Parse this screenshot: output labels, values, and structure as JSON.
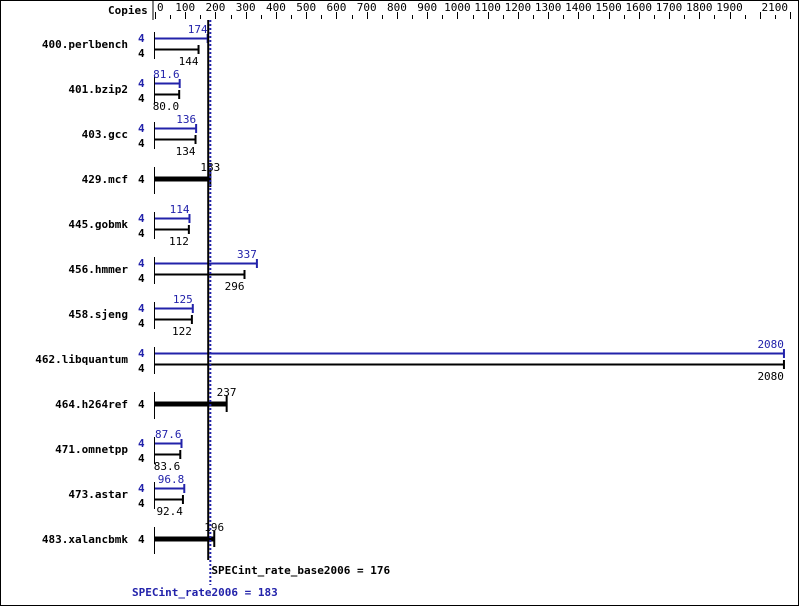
{
  "chart_data": {
    "type": "bar",
    "orientation": "horizontal",
    "axis_label": "Copies",
    "xlim": [
      0,
      2100
    ],
    "major_tick_step": 100,
    "minor_tick_step": 50,
    "tick_labels": [
      "0",
      "100",
      "200",
      "300",
      "400",
      "500",
      "600",
      "700",
      "800",
      "900",
      "1000",
      "1100",
      "1200",
      "1300",
      "1400",
      "1500",
      "1600",
      "1700",
      "1800",
      "1900",
      "2100"
    ],
    "colors": {
      "peak": "#2222aa",
      "base": "#000000"
    },
    "benchmarks": [
      {
        "name": "400.perlbench",
        "copies_peak": "4",
        "peak": 174,
        "peak_label": "174",
        "copies_base": "4",
        "base": 144,
        "base_label": "144"
      },
      {
        "name": "401.bzip2",
        "copies_peak": "4",
        "peak": 81.6,
        "peak_label": "81.6",
        "copies_base": "4",
        "base": 80.0,
        "base_label": "80.0"
      },
      {
        "name": "403.gcc",
        "copies_peak": "4",
        "peak": 136,
        "peak_label": "136",
        "copies_base": "4",
        "base": 134,
        "base_label": "134"
      },
      {
        "name": "429.mcf",
        "copies_base": "4",
        "base": 183,
        "base_label": "183"
      },
      {
        "name": "445.gobmk",
        "copies_peak": "4",
        "peak": 114,
        "peak_label": "114",
        "copies_base": "4",
        "base": 112,
        "base_label": "112"
      },
      {
        "name": "456.hmmer",
        "copies_peak": "4",
        "peak": 337,
        "peak_label": "337",
        "copies_base": "4",
        "base": 296,
        "base_label": "296"
      },
      {
        "name": "458.sjeng",
        "copies_peak": "4",
        "peak": 125,
        "peak_label": "125",
        "copies_base": "4",
        "base": 122,
        "base_label": "122"
      },
      {
        "name": "462.libquantum",
        "copies_peak": "4",
        "peak": 2080,
        "peak_label": "2080",
        "copies_base": "4",
        "base": 2080,
        "base_label": "2080"
      },
      {
        "name": "464.h264ref",
        "copies_base": "4",
        "base": 237,
        "base_label": "237"
      },
      {
        "name": "471.omnetpp",
        "copies_peak": "4",
        "peak": 87.6,
        "peak_label": "87.6",
        "copies_base": "4",
        "base": 83.6,
        "base_label": "83.6"
      },
      {
        "name": "473.astar",
        "copies_peak": "4",
        "peak": 96.8,
        "peak_label": "96.8",
        "copies_base": "4",
        "base": 92.4,
        "base_label": "92.4"
      },
      {
        "name": "483.xalancbmk",
        "copies_base": "4",
        "base": 196,
        "base_label": "196"
      }
    ],
    "base_summary": {
      "label": "SPECint_rate_base2006 = 176",
      "value": 176
    },
    "peak_summary": {
      "label": "SPECint_rate2006 = 183",
      "value": 183
    }
  }
}
